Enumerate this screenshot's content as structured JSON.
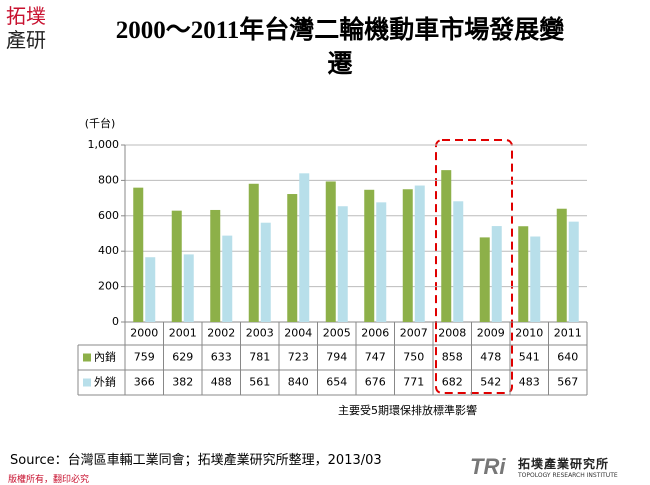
{
  "logo": {
    "line1": "拓墣",
    "line2": "產研"
  },
  "chart_data": {
    "type": "bar",
    "title": "2000～2011年台灣二輪機動車市場發展變遷",
    "y_label": "(千台)",
    "categories": [
      "2000",
      "2001",
      "2002",
      "2003",
      "2004",
      "2005",
      "2006",
      "2007",
      "2008",
      "2009",
      "2010",
      "2011"
    ],
    "series": [
      {
        "name": "內銷",
        "color": "#8db049",
        "values": [
          759,
          629,
          633,
          781,
          723,
          794,
          747,
          750,
          858,
          478,
          541,
          640
        ]
      },
      {
        "name": "外銷",
        "color": "#b8dfea",
        "values": [
          366,
          382,
          488,
          561,
          840,
          654,
          676,
          771,
          682,
          542,
          483,
          567
        ]
      }
    ],
    "ylim": [
      0,
      1000
    ],
    "yticks": [
      0,
      200,
      400,
      600,
      800,
      {
        "value": 1000,
        "label": "1,000"
      }
    ],
    "grid": true,
    "annotation": "主要受5期環保排放標準影響"
  },
  "source": "Source：台灣區車輛工業同會；拓墣產業研究所整理，2013/03",
  "footer": "版權所有，翻印必究",
  "brand": {
    "mark": "TRi",
    "name": "拓墣產業研究所",
    "english": "TOPOLOGY RESEARCH INSTITUTE"
  }
}
